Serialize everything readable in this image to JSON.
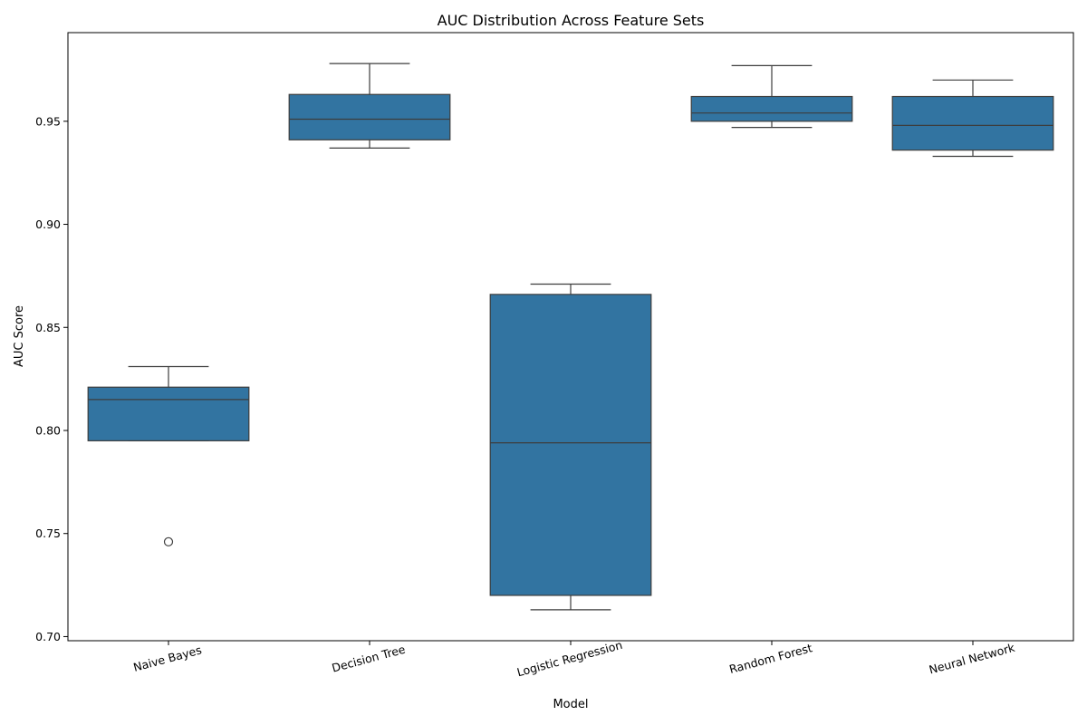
{
  "chart_data": {
    "type": "box",
    "title": "AUC Distribution Across Feature Sets",
    "xlabel": "Model",
    "ylabel": "AUC Score",
    "ylim": [
      0.698,
      0.993
    ],
    "yticks": [
      0.7,
      0.75,
      0.8,
      0.85,
      0.9,
      0.95
    ],
    "ytick_labels": [
      "0.70",
      "0.75",
      "0.80",
      "0.85",
      "0.90",
      "0.95"
    ],
    "categories": [
      "Naive Bayes",
      "Decision Tree",
      "Logistic Regression",
      "Random Forest",
      "Neural Network"
    ],
    "box_color": "#3274a1",
    "line_color": "#3d3d3d",
    "grid": false,
    "boxes": [
      {
        "name": "Naive Bayes",
        "whisker_low": 0.795,
        "q1": 0.795,
        "median": 0.815,
        "q3": 0.821,
        "whisker_high": 0.831,
        "outliers": [
          0.746
        ]
      },
      {
        "name": "Decision Tree",
        "whisker_low": 0.937,
        "q1": 0.941,
        "median": 0.951,
        "q3": 0.963,
        "whisker_high": 0.978,
        "outliers": []
      },
      {
        "name": "Logistic Regression",
        "whisker_low": 0.713,
        "q1": 0.72,
        "median": 0.794,
        "q3": 0.866,
        "whisker_high": 0.871,
        "outliers": []
      },
      {
        "name": "Random Forest",
        "whisker_low": 0.947,
        "q1": 0.95,
        "median": 0.954,
        "q3": 0.962,
        "whisker_high": 0.977,
        "outliers": []
      },
      {
        "name": "Neural Network",
        "whisker_low": 0.933,
        "q1": 0.936,
        "median": 0.948,
        "q3": 0.962,
        "whisker_high": 0.97,
        "outliers": []
      }
    ]
  }
}
